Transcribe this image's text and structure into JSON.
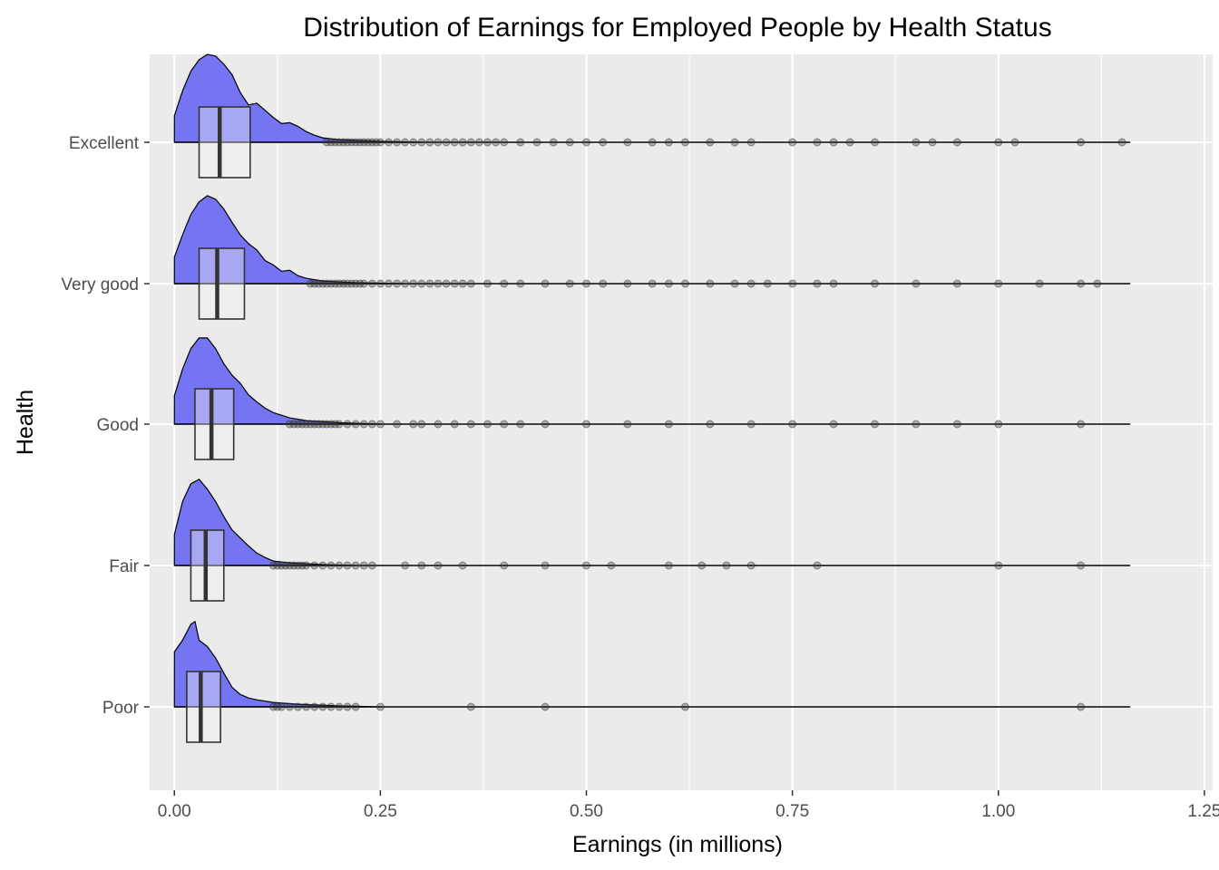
{
  "chart_data": {
    "type": "raincloud",
    "title": "Distribution of Earnings for Employed People by Health Status",
    "xlabel": "Earnings (in millions)",
    "ylabel": "Health",
    "xlim": [
      -0.03,
      1.26
    ],
    "x_ticks": [
      "0.00",
      "0.25",
      "0.50",
      "0.75",
      "1.00",
      "1.25"
    ],
    "x_tick_values": [
      0,
      0.25,
      0.5,
      0.75,
      1.0,
      1.25
    ],
    "x_minor_values": [
      0.125,
      0.375,
      0.625,
      0.875,
      1.125
    ],
    "grid": true,
    "colors": {
      "panel": "#ebebeb",
      "grid": "#ffffff",
      "density_fill": "#7575f3",
      "box_fill": "#f2f2f2",
      "points": "#333333"
    },
    "categories": [
      "Excellent",
      "Very good",
      "Good",
      "Fair",
      "Poor"
    ],
    "series": [
      {
        "category": "Excellent",
        "max": 1.16,
        "box": {
          "q1": 0.03,
          "median": 0.055,
          "q3": 0.092
        },
        "density": [
          [
            0,
            0.3
          ],
          [
            0.01,
            0.58
          ],
          [
            0.02,
            0.8
          ],
          [
            0.03,
            0.93
          ],
          [
            0.04,
            0.99
          ],
          [
            0.05,
            0.97
          ],
          [
            0.06,
            0.88
          ],
          [
            0.07,
            0.76
          ],
          [
            0.08,
            0.56
          ],
          [
            0.09,
            0.42
          ],
          [
            0.1,
            0.44
          ],
          [
            0.11,
            0.36
          ],
          [
            0.12,
            0.28
          ],
          [
            0.13,
            0.21
          ],
          [
            0.14,
            0.22
          ],
          [
            0.15,
            0.18
          ],
          [
            0.16,
            0.12
          ],
          [
            0.17,
            0.08
          ],
          [
            0.18,
            0.05
          ],
          [
            0.2,
            0.03
          ],
          [
            0.25,
            0.01
          ],
          [
            0.3,
            0.0
          ]
        ],
        "outliers": [
          0.185,
          0.19,
          0.195,
          0.2,
          0.205,
          0.21,
          0.215,
          0.22,
          0.225,
          0.23,
          0.235,
          0.24,
          0.245,
          0.25,
          0.26,
          0.27,
          0.28,
          0.29,
          0.3,
          0.31,
          0.32,
          0.33,
          0.34,
          0.35,
          0.36,
          0.37,
          0.38,
          0.39,
          0.4,
          0.42,
          0.44,
          0.46,
          0.48,
          0.5,
          0.52,
          0.55,
          0.58,
          0.6,
          0.62,
          0.65,
          0.68,
          0.7,
          0.75,
          0.78,
          0.8,
          0.82,
          0.85,
          0.9,
          0.92,
          0.95,
          1.0,
          1.02,
          1.1,
          1.15
        ]
      },
      {
        "category": "Very good",
        "max": 1.16,
        "box": {
          "q1": 0.03,
          "median": 0.052,
          "q3": 0.085
        },
        "density": [
          [
            0,
            0.3
          ],
          [
            0.01,
            0.55
          ],
          [
            0.02,
            0.78
          ],
          [
            0.03,
            0.92
          ],
          [
            0.04,
            0.99
          ],
          [
            0.05,
            0.95
          ],
          [
            0.06,
            0.84
          ],
          [
            0.07,
            0.69
          ],
          [
            0.08,
            0.55
          ],
          [
            0.09,
            0.45
          ],
          [
            0.1,
            0.38
          ],
          [
            0.11,
            0.26
          ],
          [
            0.12,
            0.21
          ],
          [
            0.13,
            0.14
          ],
          [
            0.14,
            0.15
          ],
          [
            0.15,
            0.09
          ],
          [
            0.16,
            0.06
          ],
          [
            0.18,
            0.03
          ],
          [
            0.22,
            0.01
          ],
          [
            0.28,
            0.0
          ]
        ],
        "outliers": [
          0.165,
          0.17,
          0.175,
          0.18,
          0.185,
          0.19,
          0.195,
          0.2,
          0.205,
          0.21,
          0.215,
          0.22,
          0.225,
          0.23,
          0.24,
          0.25,
          0.26,
          0.27,
          0.28,
          0.29,
          0.3,
          0.31,
          0.32,
          0.33,
          0.34,
          0.35,
          0.36,
          0.38,
          0.4,
          0.42,
          0.45,
          0.48,
          0.5,
          0.52,
          0.55,
          0.58,
          0.6,
          0.62,
          0.65,
          0.68,
          0.7,
          0.72,
          0.75,
          0.78,
          0.8,
          0.85,
          0.9,
          0.95,
          1.0,
          1.05,
          1.1,
          1.12
        ]
      },
      {
        "category": "Good",
        "max": 1.16,
        "box": {
          "q1": 0.025,
          "median": 0.045,
          "q3": 0.072
        },
        "density": [
          [
            0,
            0.32
          ],
          [
            0.01,
            0.62
          ],
          [
            0.02,
            0.85
          ],
          [
            0.03,
            0.97
          ],
          [
            0.04,
            0.97
          ],
          [
            0.05,
            0.85
          ],
          [
            0.06,
            0.68
          ],
          [
            0.07,
            0.55
          ],
          [
            0.08,
            0.46
          ],
          [
            0.09,
            0.33
          ],
          [
            0.1,
            0.25
          ],
          [
            0.11,
            0.18
          ],
          [
            0.12,
            0.13
          ],
          [
            0.13,
            0.1
          ],
          [
            0.14,
            0.07
          ],
          [
            0.16,
            0.04
          ],
          [
            0.2,
            0.015
          ],
          [
            0.25,
            0.0
          ]
        ],
        "outliers": [
          0.14,
          0.145,
          0.15,
          0.155,
          0.16,
          0.165,
          0.17,
          0.175,
          0.18,
          0.185,
          0.19,
          0.195,
          0.2,
          0.21,
          0.22,
          0.23,
          0.24,
          0.25,
          0.27,
          0.29,
          0.3,
          0.32,
          0.34,
          0.36,
          0.38,
          0.4,
          0.42,
          0.45,
          0.5,
          0.55,
          0.6,
          0.65,
          0.7,
          0.75,
          0.8,
          0.85,
          0.9,
          0.95,
          1.0,
          1.1
        ]
      },
      {
        "category": "Fair",
        "max": 1.16,
        "box": {
          "q1": 0.02,
          "median": 0.038,
          "q3": 0.06
        },
        "density": [
          [
            0,
            0.35
          ],
          [
            0.01,
            0.72
          ],
          [
            0.02,
            0.92
          ],
          [
            0.03,
            0.97
          ],
          [
            0.04,
            0.86
          ],
          [
            0.05,
            0.72
          ],
          [
            0.06,
            0.55
          ],
          [
            0.07,
            0.4
          ],
          [
            0.08,
            0.31
          ],
          [
            0.09,
            0.22
          ],
          [
            0.1,
            0.14
          ],
          [
            0.11,
            0.09
          ],
          [
            0.12,
            0.05
          ],
          [
            0.14,
            0.03
          ],
          [
            0.18,
            0.01
          ],
          [
            0.22,
            0.0
          ]
        ],
        "outliers": [
          0.12,
          0.125,
          0.13,
          0.135,
          0.14,
          0.145,
          0.15,
          0.155,
          0.16,
          0.17,
          0.18,
          0.19,
          0.2,
          0.21,
          0.22,
          0.23,
          0.24,
          0.28,
          0.3,
          0.32,
          0.35,
          0.4,
          0.45,
          0.5,
          0.53,
          0.6,
          0.64,
          0.67,
          0.7,
          0.78,
          1.0,
          1.1
        ]
      },
      {
        "category": "Poor",
        "max": 1.16,
        "box": {
          "q1": 0.015,
          "median": 0.032,
          "q3": 0.056
        },
        "density": [
          [
            0,
            0.62
          ],
          [
            0.01,
            0.75
          ],
          [
            0.02,
            0.93
          ],
          [
            0.025,
            0.96
          ],
          [
            0.03,
            0.75
          ],
          [
            0.04,
            0.68
          ],
          [
            0.05,
            0.55
          ],
          [
            0.06,
            0.38
          ],
          [
            0.07,
            0.22
          ],
          [
            0.08,
            0.14
          ],
          [
            0.09,
            0.1
          ],
          [
            0.1,
            0.08
          ],
          [
            0.12,
            0.05
          ],
          [
            0.15,
            0.03
          ],
          [
            0.2,
            0.01
          ],
          [
            0.25,
            0.0
          ]
        ],
        "outliers": [
          0.12,
          0.125,
          0.13,
          0.14,
          0.15,
          0.16,
          0.17,
          0.18,
          0.19,
          0.2,
          0.21,
          0.22,
          0.25,
          0.36,
          0.45,
          0.62,
          1.1
        ]
      }
    ]
  }
}
